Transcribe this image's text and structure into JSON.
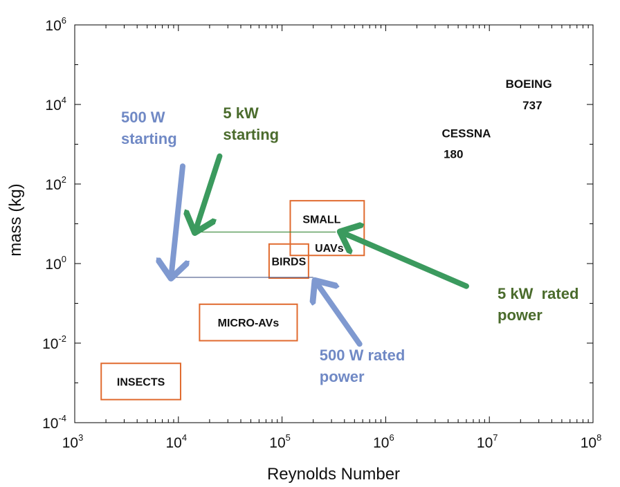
{
  "chart_data": {
    "type": "scatter",
    "title": "",
    "xlabel": "Reynolds Number",
    "ylabel": "mass (kg)",
    "xscale": "log",
    "yscale": "log",
    "xlim": [
      1000,
      100000000
    ],
    "ylim": [
      0.0001,
      1000000
    ],
    "x_ticks": [
      {
        "base": "10",
        "exp": "3"
      },
      {
        "base": "10",
        "exp": "4"
      },
      {
        "base": "10",
        "exp": "5"
      },
      {
        "base": "10",
        "exp": "6"
      },
      {
        "base": "10",
        "exp": "7"
      },
      {
        "base": "10",
        "exp": "8"
      }
    ],
    "y_ticks": [
      {
        "base": "10",
        "exp": "-4"
      },
      {
        "base": "10",
        "exp": "-2"
      },
      {
        "base": "10",
        "exp": "0"
      },
      {
        "base": "10",
        "exp": "2"
      },
      {
        "base": "10",
        "exp": "4"
      },
      {
        "base": "10",
        "exp": "6"
      }
    ],
    "labels": [
      {
        "text": "BOEING",
        "x": 24000000,
        "y": 26000
      },
      {
        "text": "737",
        "x": 26000000,
        "y": 7500
      },
      {
        "text": "CESSNA",
        "x": 6000000,
        "y": 1500
      },
      {
        "text": "180",
        "x": 4500000,
        "y": 450
      }
    ],
    "regions": [
      {
        "label_lines": [
          "INSECTS"
        ],
        "x_range": [
          1800,
          10500
        ],
        "y_range": [
          0.00038,
          0.0031
        ]
      },
      {
        "label_lines": [
          "MICRO-AVs"
        ],
        "x_range": [
          16000,
          140000
        ],
        "y_range": [
          0.0115,
          0.095
        ]
      },
      {
        "label_lines": [
          "BIRDS"
        ],
        "x_range": [
          75000,
          180000
        ],
        "y_range": [
          0.43,
          3.1
        ]
      },
      {
        "label_lines": [
          "SMALL",
          "UAVs"
        ],
        "x_range": [
          120000,
          620000
        ],
        "y_range": [
          1.6,
          38
        ]
      }
    ],
    "series": [
      {
        "name": "500 W",
        "color": "#4a5a8a",
        "x": [
          8000,
          200000
        ],
        "y": [
          0.45,
          0.45
        ]
      },
      {
        "name": "5 kW",
        "color": "#3a8a3a",
        "x": [
          14000,
          330000
        ],
        "y": [
          6.2,
          6.2
        ]
      }
    ],
    "annotations": [
      {
        "lines": [
          "500 W",
          "starting"
        ],
        "color": "#7089c5",
        "text_at": [
          2800,
          3500
        ],
        "arrow_from": [
          11000,
          280
        ],
        "arrow_to": [
          8500,
          0.45
        ]
      },
      {
        "lines": [
          "500 W rated",
          "power"
        ],
        "color": "#7089c5",
        "text_at": [
          230000,
          0.0037
        ],
        "arrow_from": [
          560000,
          0.0095
        ],
        "arrow_to": [
          210000,
          0.36
        ]
      },
      {
        "lines": [
          "5 kW",
          "starting"
        ],
        "color": "#4a6b2c",
        "text_at": [
          27000,
          4500
        ],
        "arrow_from": [
          25000,
          500
        ],
        "arrow_to": [
          14500,
          6.3
        ]
      },
      {
        "lines": [
          "5 kW  rated",
          "power"
        ],
        "color": "#4a6b2c",
        "text_at": [
          12000000,
          0.13
        ],
        "arrow_from": [
          6000000,
          0.27
        ],
        "arrow_to": [
          370000,
          6.2
        ]
      }
    ]
  }
}
